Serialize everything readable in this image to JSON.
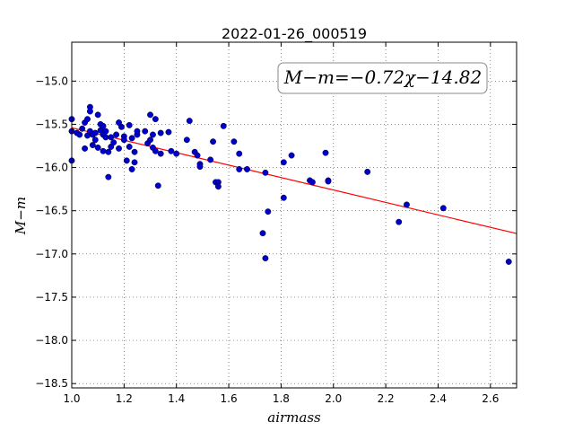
{
  "chart_data": {
    "type": "scatter",
    "title": "2022-01-26_000519",
    "xlabel": "airmass",
    "ylabel": "M−m",
    "annotation": "M−m=−0.72χ−14.82",
    "xlim": [
      1.0,
      2.7
    ],
    "ylim": [
      -18.55,
      -14.55
    ],
    "xticks": [
      1.0,
      1.2,
      1.4,
      1.6,
      1.8,
      2.0,
      2.2,
      2.4,
      2.6
    ],
    "xtick_labels": [
      "1.0",
      "1.2",
      "1.4",
      "1.6",
      "1.8",
      "2.0",
      "2.2",
      "2.4",
      "2.6"
    ],
    "yticks": [
      -15.0,
      -15.5,
      -16.0,
      -16.5,
      -17.0,
      -17.5,
      -18.0,
      -18.5
    ],
    "ytick_labels": [
      "−15.0",
      "−15.5",
      "−16.0",
      "−16.5",
      "−17.0",
      "−17.5",
      "−18.0",
      "−18.5"
    ],
    "grid": true,
    "fit": {
      "slope": -0.72,
      "intercept": -14.82,
      "color": "#ff0000"
    },
    "point_color": "#0000cc",
    "x": [
      1.0,
      1.0,
      1.0,
      1.02,
      1.03,
      1.04,
      1.05,
      1.05,
      1.06,
      1.06,
      1.07,
      1.07,
      1.07,
      1.08,
      1.08,
      1.09,
      1.09,
      1.1,
      1.1,
      1.11,
      1.11,
      1.12,
      1.12,
      1.12,
      1.13,
      1.13,
      1.14,
      1.14,
      1.15,
      1.15,
      1.16,
      1.17,
      1.18,
      1.18,
      1.19,
      1.2,
      1.2,
      1.21,
      1.22,
      1.22,
      1.23,
      1.23,
      1.24,
      1.24,
      1.25,
      1.25,
      1.28,
      1.29,
      1.3,
      1.3,
      1.31,
      1.31,
      1.32,
      1.32,
      1.33,
      1.34,
      1.34,
      1.37,
      1.38,
      1.4,
      1.44,
      1.45,
      1.47,
      1.48,
      1.49,
      1.49,
      1.53,
      1.54,
      1.55,
      1.56,
      1.56,
      1.58,
      1.62,
      1.64,
      1.64,
      1.67,
      1.73,
      1.74,
      1.74,
      1.75,
      1.81,
      1.81,
      1.84,
      1.91,
      1.92,
      1.97,
      1.98,
      1.98,
      2.13,
      2.25,
      2.28,
      2.42,
      2.67
    ],
    "y": [
      -15.92,
      -15.44,
      -15.58,
      -15.6,
      -15.62,
      -15.55,
      -15.48,
      -15.78,
      -15.44,
      -15.63,
      -15.3,
      -15.35,
      -15.58,
      -15.62,
      -15.74,
      -15.68,
      -15.6,
      -15.39,
      -15.77,
      -15.5,
      -15.57,
      -15.52,
      -15.62,
      -15.81,
      -15.65,
      -15.58,
      -15.82,
      -16.11,
      -15.76,
      -15.65,
      -15.71,
      -15.62,
      -15.48,
      -15.78,
      -15.53,
      -15.64,
      -15.68,
      -15.92,
      -15.76,
      -15.51,
      -15.66,
      -16.02,
      -15.94,
      -15.82,
      -15.62,
      -15.58,
      -15.58,
      -15.72,
      -15.68,
      -15.39,
      -15.62,
      -15.77,
      -15.44,
      -15.81,
      -16.21,
      -15.84,
      -15.6,
      -15.59,
      -15.81,
      -15.84,
      -15.68,
      -15.46,
      -15.82,
      -15.86,
      -15.96,
      -15.99,
      -15.91,
      -15.7,
      -16.17,
      -16.17,
      -16.22,
      -15.52,
      -15.7,
      -15.84,
      -16.02,
      -16.02,
      -16.76,
      -17.05,
      -16.06,
      -16.51,
      -15.94,
      -16.35,
      -15.86,
      -16.15,
      -16.17,
      -15.83,
      -16.15,
      -16.16,
      -16.05,
      -16.63,
      -16.43,
      -16.47,
      -17.09
    ]
  }
}
